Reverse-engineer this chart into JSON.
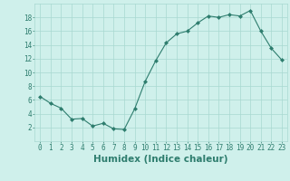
{
  "x": [
    0,
    1,
    2,
    3,
    4,
    5,
    6,
    7,
    8,
    9,
    10,
    11,
    12,
    13,
    14,
    15,
    16,
    17,
    18,
    19,
    20,
    21,
    22,
    23
  ],
  "y": [
    6.5,
    5.5,
    4.8,
    3.2,
    3.3,
    2.2,
    2.6,
    1.8,
    1.7,
    4.7,
    8.7,
    11.7,
    14.3,
    15.6,
    16.0,
    17.2,
    18.2,
    18.0,
    18.4,
    18.2,
    19.0,
    16.0,
    13.5,
    11.8
  ],
  "line_color": "#2e7d6e",
  "marker": "D",
  "marker_size": 2.0,
  "bg_color": "#cff0eb",
  "grid_color": "#a8d8d0",
  "xlabel": "Humidex (Indice chaleur)",
  "xlim": [
    -0.5,
    23.5
  ],
  "ylim": [
    0,
    20
  ],
  "yticks": [
    2,
    4,
    6,
    8,
    10,
    12,
    14,
    16,
    18
  ],
  "xticks": [
    0,
    1,
    2,
    3,
    4,
    5,
    6,
    7,
    8,
    9,
    10,
    11,
    12,
    13,
    14,
    15,
    16,
    17,
    18,
    19,
    20,
    21,
    22,
    23
  ],
  "tick_fontsize": 5.5,
  "xlabel_fontsize": 7.5,
  "label_color": "#2e7d6e"
}
